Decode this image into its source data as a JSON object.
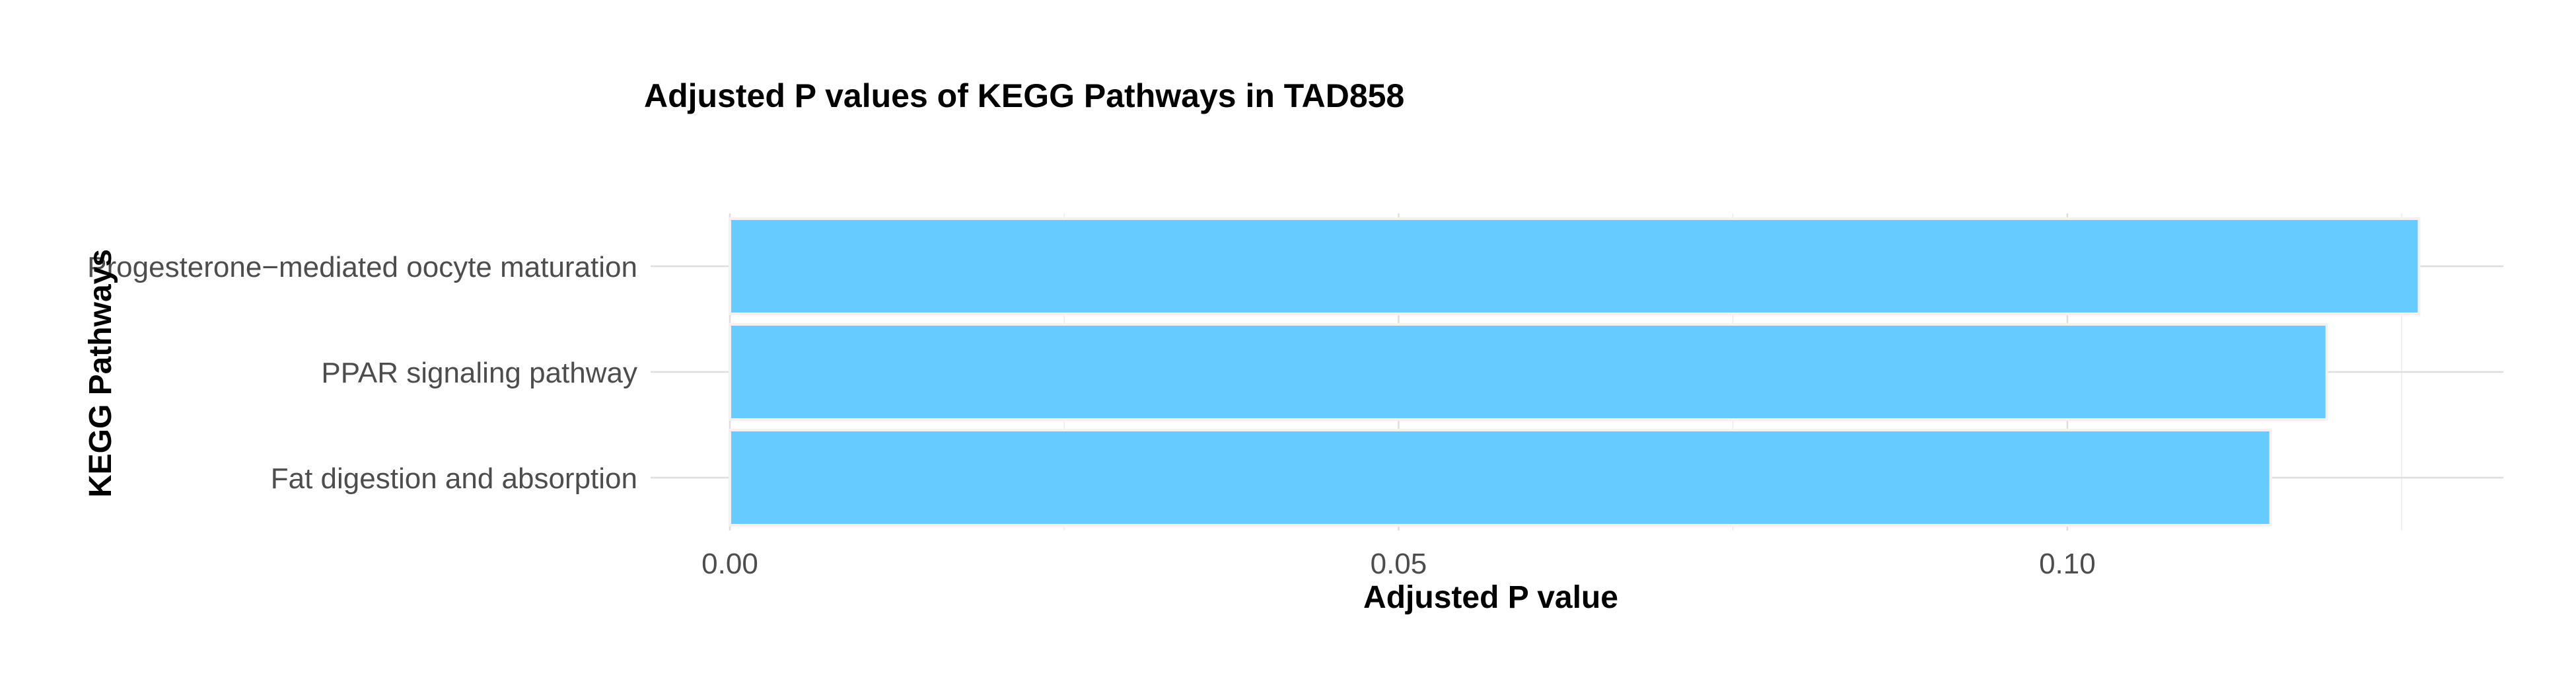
{
  "chart_data": {
    "type": "bar",
    "orientation": "horizontal",
    "title": "Adjusted P values of KEGG Pathways in TAD858",
    "xlabel": "Adjusted P value",
    "ylabel": "KEGG Pathways",
    "categories": [
      "Progesterone−mediated oocyte maturation",
      "PPAR signaling pathway",
      "Fat digestion and absorption"
    ],
    "values": [
      0.1263,
      0.1194,
      0.1152
    ],
    "xlim": [
      0,
      0.1326
    ],
    "xticks": [
      0.0,
      0.05,
      0.1
    ],
    "xtick_labels": [
      "0.00",
      "0.05",
      "0.10"
    ],
    "bar_color": "#66CCFF",
    "grid": true,
    "legend": false
  }
}
